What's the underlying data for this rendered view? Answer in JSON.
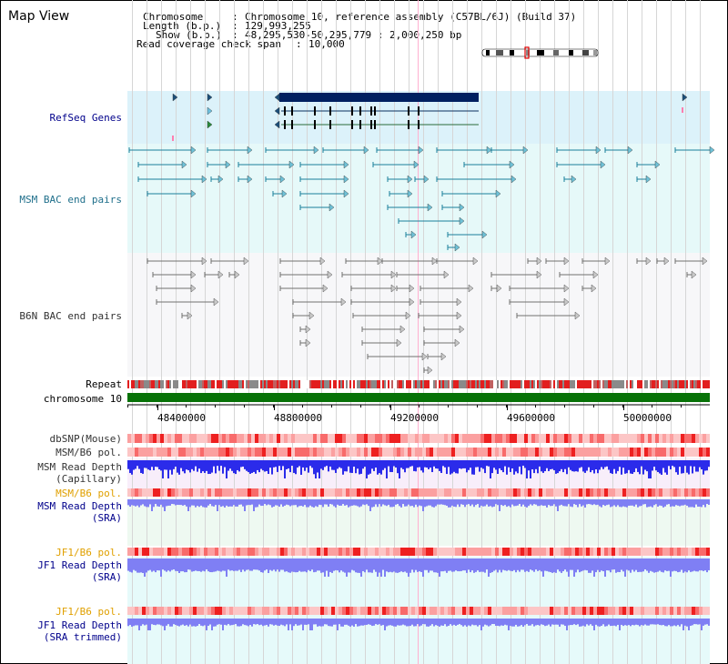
{
  "page": {
    "title": "Map View"
  },
  "header": {
    "chromosome_label": "Chromosome",
    "chromosome_value": "Chromosome 10, reference assembly (C57BL/6J) (Build 37)",
    "length_label": "Length (b.p.)",
    "length_value": "129,993,255",
    "show_label": "Show (b.p.)",
    "show_value": "48,295,530-50,295,779 : 2,000,250 bp",
    "coverage_label": "Read coverage check span",
    "coverage_value": "10,000"
  },
  "tracks": {
    "refseq": "RefSeq Genes",
    "msm_bac": "MSM BAC end pairs",
    "b6n_bac": "B6N BAC end pairs",
    "repeat": "Repeat",
    "chromosome": "chromosome 10",
    "dbsnp": "dbSNP(Mouse)",
    "msm_b6_pol_1": "MSM/B6 pol.",
    "msm_depth_cap_1": "MSM Read Depth",
    "msm_depth_cap_2": "(Capillary)",
    "msm_b6_pol_2": "MSM/B6 pol.",
    "msm_depth_sra_1": "MSM Read Depth",
    "msm_depth_sra_2": "(SRA)",
    "jf1_b6_pol_1": "JF1/B6 pol.",
    "jf1_depth_sra_1": "JF1 Read Depth",
    "jf1_depth_sra_2": "(SRA)",
    "jf1_b6_pol_2": "JF1/B6 pol.",
    "jf1_depth_trim_1": "JF1 Read Depth",
    "jf1_depth_trim_2": "(SRA trimmed)"
  },
  "axis": {
    "ticks": [
      "48400000",
      "48800000",
      "49200000",
      "49600000",
      "50000000"
    ]
  },
  "colors": {
    "refseq_bg": "#dcf2fa",
    "msm_bg": "#e6f9f9",
    "b6n_bg": "#f7f7f9",
    "depth_bg_pink": "#f8eefa",
    "depth_bg_green": "#eef9f1",
    "depth_bg_cyan": "#e6fafa",
    "gene_dark": "#002060",
    "msm_line": "#1a7f9a",
    "b6n_line": "#707070",
    "chromosome": "#077207",
    "depth_blue": "#2b2bea",
    "depth_blue_light": "#7f7ff4",
    "label_black": "#333333",
    "label_blue": "#00008b",
    "label_teal": "#1f6f8b",
    "label_orange": "#e0a000"
  }
}
